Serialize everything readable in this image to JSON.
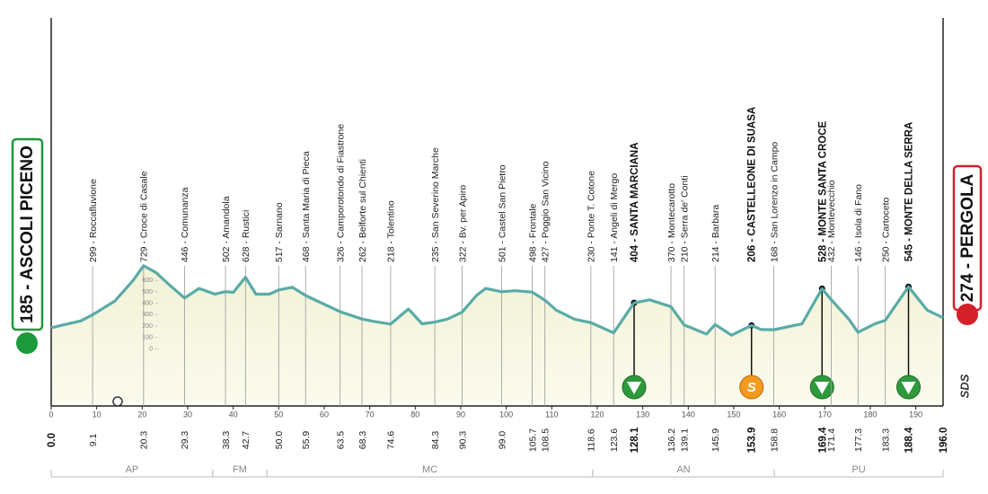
{
  "chart_data": {
    "type": "area",
    "color": "#5aaba7",
    "fill": "#f4f4dc",
    "x": [
      0,
      2.6,
      6.5,
      9.1,
      14,
      18,
      20.3,
      23,
      26,
      29.3,
      32.5,
      36,
      38.3,
      40,
      42.7,
      45,
      48,
      50,
      53,
      55.9,
      59,
      63.5,
      68.3,
      71,
      74.6,
      78.5,
      81.5,
      84.3,
      87,
      90.3,
      93.5,
      95.5,
      99,
      102,
      105.7,
      108.5,
      111,
      115,
      118.6,
      123.6,
      128.1,
      131.5,
      136.2,
      139.1,
      144,
      145.9,
      149.5,
      153.9,
      156,
      158.8,
      165,
      169.4,
      171.4,
      175.3,
      177.3,
      181,
      183.3,
      188.4,
      192.5,
      196
    ],
    "values": [
      185,
      210,
      245,
      299,
      420,
      600,
      729,
      670,
      560,
      446,
      530,
      480,
      502,
      495,
      628,
      480,
      480,
      517,
      540,
      468,
      410,
      326,
      262,
      240,
      218,
      350,
      220,
      235,
      260,
      322,
      470,
      530,
      501,
      510,
      498,
      427,
      340,
      260,
      230,
      141,
      404,
      430,
      370,
      210,
      130,
      214,
      120,
      206,
      170,
      168,
      220,
      528,
      432,
      260,
      146,
      220,
      250,
      545,
      340,
      274
    ],
    "xlim": [
      0,
      196
    ],
    "xticks": [
      0,
      10,
      20,
      30,
      40,
      50,
      60,
      70,
      80,
      90,
      100,
      110,
      120,
      130,
      140,
      150,
      160,
      170,
      180,
      190
    ],
    "ylim": [
      -500,
      2900
    ],
    "yticks": [
      0,
      100,
      200,
      300,
      400,
      500,
      600
    ],
    "start": {
      "label": "185 - ASCOLI PICENO",
      "color": "#1a9a3a"
    },
    "finish": {
      "label": "274 - PERGOLA",
      "color": "#d3202b"
    },
    "logo": "SDS",
    "waypoints": [
      {
        "km": 0,
        "km_label": "0.0",
        "bold": true
      },
      {
        "km": 9.1,
        "label": "299 - Roccafluvione"
      },
      {
        "km": 20.3,
        "label": "729 - Croce di Casale"
      },
      {
        "km": 29.3,
        "label": "446 - Comunanza"
      },
      {
        "km": 38.3,
        "label": "502 - Amandola"
      },
      {
        "km": 42.7,
        "label": "628 - Rustici"
      },
      {
        "km": 50,
        "km_label": "50.0",
        "label": "517 - Sarnano"
      },
      {
        "km": 55.9,
        "label": "468 - Santa Maria di Pieca"
      },
      {
        "km": 63.5,
        "label": "326 - Camporotondo di Fiastrone"
      },
      {
        "km": 68.3,
        "label": "262 - Belforte sul Chienti"
      },
      {
        "km": 74.6,
        "label": "218 - Tolentino"
      },
      {
        "km": 84.3,
        "label": "235 - San Severino Marche"
      },
      {
        "km": 90.3,
        "label": "322 - Bv. per Apiro"
      },
      {
        "km": 99,
        "km_label": "99.0",
        "label": "501 - Castel San Pietro"
      },
      {
        "km": 105.7,
        "label": "498 - Frontale"
      },
      {
        "km": 108.5,
        "label": "427 - Poggio San Vicino"
      },
      {
        "km": 118.6,
        "label": "230 - Ponte T. Cotone"
      },
      {
        "km": 123.6,
        "label": "141 - Angeli di Mergo"
      },
      {
        "km": 128.1,
        "label": "404 - SANTA MARCIANA",
        "bold": true,
        "marker": "climb"
      },
      {
        "km": 136.2,
        "label": "370 - Montecarotto"
      },
      {
        "km": 139.1,
        "label": "210 - Serra de' Conti"
      },
      {
        "km": 145.9,
        "label": "214 - Barbara"
      },
      {
        "km": 153.9,
        "label": "206 - CASTELLEONE DI SUASA",
        "bold": true,
        "marker": "sprint",
        "marker_label": "S"
      },
      {
        "km": 158.8,
        "label": "168 - San Lorenzo in Campo"
      },
      {
        "km": 169.4,
        "label": "528 - MONTE SANTA CROCE",
        "bold": true,
        "marker": "climb"
      },
      {
        "km": 171.4,
        "label": "432 - Montevecchio"
      },
      {
        "km": 177.3,
        "label": "146 - Isola di Fano"
      },
      {
        "km": 183.3,
        "label": "250 - Cartoceto"
      },
      {
        "km": 188.4,
        "label": "545 - MONTE DELLA SERRA",
        "bold": true,
        "marker": "climb"
      },
      {
        "km": 196,
        "km_label": "196.0",
        "bold": true
      }
    ],
    "regions": [
      {
        "name": "AP",
        "from": 0,
        "to": 35.5
      },
      {
        "name": "FM",
        "from": 35.5,
        "to": 47.4
      },
      {
        "name": "MC",
        "from": 47.4,
        "to": 119
      },
      {
        "name": "AN",
        "from": 119,
        "to": 158.9
      },
      {
        "name": "PU",
        "from": 158.9,
        "to": 196
      }
    ]
  }
}
